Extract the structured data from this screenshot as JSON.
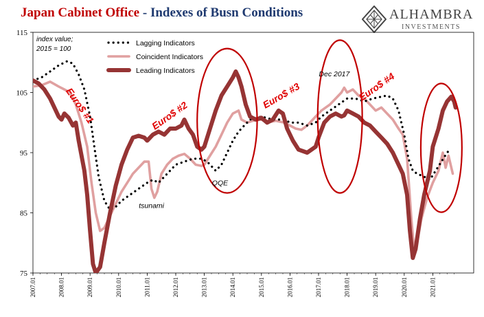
{
  "header": {
    "title_part1": "Japan Cabinet Office",
    "title_sep": " - ",
    "title_part2": "Indexes of Busn Conditions"
  },
  "logo": {
    "name": "ALHAMBRA",
    "sub": "INVESTMENTS"
  },
  "colors": {
    "lagging": "#000000",
    "coincident": "#e0a0a0",
    "leading": "#963434",
    "annotation_red": "#e00000",
    "ellipse": "#c00000",
    "title_red": "#c00000",
    "title_blue": "#1f3a70"
  },
  "chart_data": {
    "type": "line",
    "title": "Japan Cabinet Office - Indexes of Busn Conditions",
    "ylim": [
      75,
      115
    ],
    "yticks": [
      75,
      85,
      95,
      105,
      115
    ],
    "xlim": [
      2007.0,
      2021.9
    ],
    "xticks": [
      {
        "x": 2007.0,
        "label": "2007.01"
      },
      {
        "x": 2008.0,
        "label": "2008.01"
      },
      {
        "x": 2009.0,
        "label": "2009.01"
      },
      {
        "x": 2010.0,
        "label": "2010.01"
      },
      {
        "x": 2011.0,
        "label": "2011.01"
      },
      {
        "x": 2012.0,
        "label": "2012.01"
      },
      {
        "x": 2013.0,
        "label": "2013.01"
      },
      {
        "x": 2014.0,
        "label": "2014.01"
      },
      {
        "x": 2015.0,
        "label": "2015.01"
      },
      {
        "x": 2016.0,
        "label": "2016.01"
      },
      {
        "x": 2017.0,
        "label": "2017.01"
      },
      {
        "x": 2018.0,
        "label": "2018.01"
      },
      {
        "x": 2019.0,
        "label": "2019.01"
      },
      {
        "x": 2020.0,
        "label": "2020.01"
      },
      {
        "x": 2021.0,
        "label": "2021.01"
      }
    ],
    "axis_note": [
      "index value;",
      "2015 = 100"
    ],
    "legend_position": "top-left",
    "series": [
      {
        "name": "Lagging Indicators",
        "style": "dotted",
        "points": [
          [
            2007.0,
            107
          ],
          [
            2007.3,
            107.5
          ],
          [
            2007.6,
            108.5
          ],
          [
            2007.9,
            109.5
          ],
          [
            2008.2,
            110.2
          ],
          [
            2008.4,
            109.8
          ],
          [
            2008.6,
            108
          ],
          [
            2008.8,
            105.5
          ],
          [
            2009.0,
            101
          ],
          [
            2009.15,
            96
          ],
          [
            2009.3,
            91
          ],
          [
            2009.5,
            87
          ],
          [
            2009.7,
            85.5
          ],
          [
            2009.9,
            86
          ],
          [
            2010.1,
            87
          ],
          [
            2010.4,
            88
          ],
          [
            2010.7,
            89
          ],
          [
            2011.0,
            90
          ],
          [
            2011.2,
            90.5
          ],
          [
            2011.4,
            90
          ],
          [
            2011.6,
            91
          ],
          [
            2011.8,
            92
          ],
          [
            2012.0,
            93
          ],
          [
            2012.3,
            93.5
          ],
          [
            2012.6,
            94
          ],
          [
            2012.9,
            94
          ],
          [
            2013.1,
            93.5
          ],
          [
            2013.3,
            92.5
          ],
          [
            2013.4,
            92
          ],
          [
            2013.6,
            93
          ],
          [
            2013.8,
            95
          ],
          [
            2014.0,
            97
          ],
          [
            2014.2,
            98.5
          ],
          [
            2014.4,
            99.5
          ],
          [
            2014.6,
            100.5
          ],
          [
            2015.0,
            101
          ],
          [
            2015.4,
            100.5
          ],
          [
            2015.8,
            100.5
          ],
          [
            2016.0,
            100
          ],
          [
            2016.3,
            100
          ],
          [
            2016.6,
            99.5
          ],
          [
            2016.9,
            100
          ],
          [
            2017.1,
            101
          ],
          [
            2017.4,
            102
          ],
          [
            2017.7,
            103
          ],
          [
            2018.0,
            104
          ],
          [
            2018.3,
            104
          ],
          [
            2018.6,
            103.5
          ],
          [
            2018.9,
            104
          ],
          [
            2019.1,
            104.2
          ],
          [
            2019.4,
            104.5
          ],
          [
            2019.6,
            104
          ],
          [
            2019.8,
            102
          ],
          [
            2020.0,
            98
          ],
          [
            2020.15,
            94
          ],
          [
            2020.3,
            92
          ],
          [
            2020.45,
            91.5
          ],
          [
            2020.7,
            91
          ],
          [
            2020.9,
            90.5
          ],
          [
            2021.1,
            92
          ],
          [
            2021.3,
            93.5
          ],
          [
            2021.5,
            95
          ],
          [
            2021.6,
            95.5
          ]
        ]
      },
      {
        "name": "Coincident Indicators",
        "style": "solid",
        "points": [
          [
            2007.0,
            106
          ],
          [
            2007.3,
            106.2
          ],
          [
            2007.6,
            106.8
          ],
          [
            2007.9,
            106
          ],
          [
            2008.1,
            105.5
          ],
          [
            2008.3,
            105
          ],
          [
            2008.5,
            103
          ],
          [
            2008.7,
            100
          ],
          [
            2008.9,
            96
          ],
          [
            2009.05,
            90
          ],
          [
            2009.2,
            85
          ],
          [
            2009.35,
            82
          ],
          [
            2009.5,
            82.5
          ],
          [
            2009.7,
            84.5
          ],
          [
            2009.9,
            86.5
          ],
          [
            2010.1,
            88.5
          ],
          [
            2010.3,
            90
          ],
          [
            2010.5,
            91.5
          ],
          [
            2010.7,
            92.5
          ],
          [
            2010.9,
            93.5
          ],
          [
            2011.05,
            93.5
          ],
          [
            2011.15,
            89
          ],
          [
            2011.25,
            87.5
          ],
          [
            2011.35,
            88.5
          ],
          [
            2011.5,
            91.5
          ],
          [
            2011.7,
            93
          ],
          [
            2011.9,
            94
          ],
          [
            2012.1,
            94.5
          ],
          [
            2012.3,
            94.8
          ],
          [
            2012.5,
            94
          ],
          [
            2012.7,
            93
          ],
          [
            2012.9,
            92.8
          ],
          [
            2013.0,
            93
          ],
          [
            2013.2,
            94.5
          ],
          [
            2013.4,
            96
          ],
          [
            2013.6,
            98
          ],
          [
            2013.8,
            100
          ],
          [
            2014.0,
            101.5
          ],
          [
            2014.2,
            102
          ],
          [
            2014.3,
            100.5
          ],
          [
            2014.5,
            100
          ],
          [
            2014.7,
            100.3
          ],
          [
            2015.0,
            100.5
          ],
          [
            2015.2,
            100
          ],
          [
            2015.5,
            100.3
          ],
          [
            2015.8,
            100
          ],
          [
            2016.0,
            99.5
          ],
          [
            2016.2,
            99
          ],
          [
            2016.4,
            98.8
          ],
          [
            2016.6,
            99.5
          ],
          [
            2016.9,
            101
          ],
          [
            2017.1,
            102
          ],
          [
            2017.4,
            103
          ],
          [
            2017.6,
            104
          ],
          [
            2017.8,
            105
          ],
          [
            2017.9,
            105.8
          ],
          [
            2018.0,
            105
          ],
          [
            2018.2,
            105.5
          ],
          [
            2018.4,
            104.5
          ],
          [
            2018.6,
            104
          ],
          [
            2018.8,
            103
          ],
          [
            2019.0,
            102
          ],
          [
            2019.2,
            102.5
          ],
          [
            2019.4,
            101.5
          ],
          [
            2019.6,
            100.5
          ],
          [
            2019.8,
            99
          ],
          [
            2019.95,
            98
          ],
          [
            2020.1,
            94
          ],
          [
            2020.25,
            84
          ],
          [
            2020.35,
            78.5
          ],
          [
            2020.45,
            80
          ],
          [
            2020.6,
            84
          ],
          [
            2020.8,
            87.5
          ],
          [
            2021.0,
            90
          ],
          [
            2021.2,
            92
          ],
          [
            2021.35,
            95
          ],
          [
            2021.45,
            92.5
          ],
          [
            2021.55,
            94.5
          ],
          [
            2021.7,
            91.5
          ]
        ]
      },
      {
        "name": "Leading Indicators",
        "style": "solid-thick",
        "points": [
          [
            2007.0,
            107
          ],
          [
            2007.2,
            106.5
          ],
          [
            2007.4,
            105.5
          ],
          [
            2007.6,
            104
          ],
          [
            2007.8,
            102
          ],
          [
            2007.9,
            101
          ],
          [
            2008.0,
            100.5
          ],
          [
            2008.1,
            101.5
          ],
          [
            2008.25,
            100.8
          ],
          [
            2008.4,
            99.5
          ],
          [
            2008.5,
            100
          ],
          [
            2008.6,
            97
          ],
          [
            2008.8,
            92
          ],
          [
            2008.9,
            88
          ],
          [
            2009.0,
            82
          ],
          [
            2009.1,
            76.5
          ],
          [
            2009.2,
            75
          ],
          [
            2009.35,
            76
          ],
          [
            2009.5,
            80
          ],
          [
            2009.7,
            85
          ],
          [
            2009.9,
            89.5
          ],
          [
            2010.1,
            93
          ],
          [
            2010.3,
            95.5
          ],
          [
            2010.5,
            97.5
          ],
          [
            2010.7,
            97.8
          ],
          [
            2010.9,
            97.5
          ],
          [
            2011.0,
            97
          ],
          [
            2011.2,
            98
          ],
          [
            2011.4,
            98.5
          ],
          [
            2011.6,
            98
          ],
          [
            2011.8,
            99
          ],
          [
            2012.0,
            99
          ],
          [
            2012.2,
            99.5
          ],
          [
            2012.3,
            100.5
          ],
          [
            2012.45,
            99
          ],
          [
            2012.6,
            98
          ],
          [
            2012.75,
            96
          ],
          [
            2012.9,
            95.5
          ],
          [
            2013.0,
            96
          ],
          [
            2013.2,
            99
          ],
          [
            2013.4,
            102
          ],
          [
            2013.6,
            104.5
          ],
          [
            2013.8,
            106
          ],
          [
            2014.0,
            107.5
          ],
          [
            2014.1,
            108.5
          ],
          [
            2014.2,
            107.5
          ],
          [
            2014.3,
            106
          ],
          [
            2014.45,
            103
          ],
          [
            2014.6,
            101
          ],
          [
            2014.8,
            100.5
          ],
          [
            2015.0,
            100.8
          ],
          [
            2015.2,
            100
          ],
          [
            2015.4,
            100.5
          ],
          [
            2015.6,
            102
          ],
          [
            2015.75,
            101.5
          ],
          [
            2015.9,
            99
          ],
          [
            2016.1,
            97
          ],
          [
            2016.3,
            95.5
          ],
          [
            2016.6,
            95
          ],
          [
            2016.9,
            96
          ],
          [
            2017.0,
            97.5
          ],
          [
            2017.2,
            100
          ],
          [
            2017.4,
            101
          ],
          [
            2017.6,
            101.5
          ],
          [
            2017.8,
            101
          ],
          [
            2017.9,
            101.2
          ],
          [
            2018.0,
            102
          ],
          [
            2018.2,
            101.5
          ],
          [
            2018.4,
            101
          ],
          [
            2018.6,
            100
          ],
          [
            2018.8,
            99.5
          ],
          [
            2019.0,
            98.5
          ],
          [
            2019.2,
            97.5
          ],
          [
            2019.4,
            96.5
          ],
          [
            2019.6,
            95
          ],
          [
            2019.8,
            93
          ],
          [
            2019.95,
            91.5
          ],
          [
            2020.1,
            88
          ],
          [
            2020.2,
            82
          ],
          [
            2020.3,
            77.5
          ],
          [
            2020.4,
            79
          ],
          [
            2020.55,
            84
          ],
          [
            2020.7,
            88
          ],
          [
            2020.9,
            92
          ],
          [
            2021.0,
            96
          ],
          [
            2021.2,
            99
          ],
          [
            2021.35,
            102
          ],
          [
            2021.5,
            103.5
          ],
          [
            2021.65,
            104.3
          ],
          [
            2021.75,
            103.5
          ],
          [
            2021.8,
            102.5
          ]
        ]
      }
    ],
    "annotations": [
      {
        "text": "Euro$ #1",
        "x": 2008.55,
        "y": 102.5,
        "rotate": 55
      },
      {
        "text": "Euro$ #2",
        "x": 2011.85,
        "y": 100.7,
        "rotate": -35
      },
      {
        "text": "Euro$ #3",
        "x": 2015.75,
        "y": 104.0,
        "rotate": -30
      },
      {
        "text": "Euro$ #4",
        "x": 2019.1,
        "y": 105.5,
        "rotate": -35
      }
    ],
    "notes": [
      {
        "text": "tsunami",
        "x": 2011.15,
        "y": 85.8
      },
      {
        "text": "QQE",
        "x": 2013.55,
        "y": 89.6
      },
      {
        "text": "Dec 2017",
        "x": 2017.55,
        "y": 107.7
      }
    ],
    "ellipses": [
      {
        "cx": 2013.8,
        "cy": 100.3,
        "rx": 1.05,
        "ry": 12.0
      },
      {
        "cx": 2017.75,
        "cy": 101.0,
        "rx": 0.78,
        "ry": 12.7
      },
      {
        "cx": 2021.3,
        "cy": 95.8,
        "rx": 0.72,
        "ry": 10.7
      }
    ]
  }
}
